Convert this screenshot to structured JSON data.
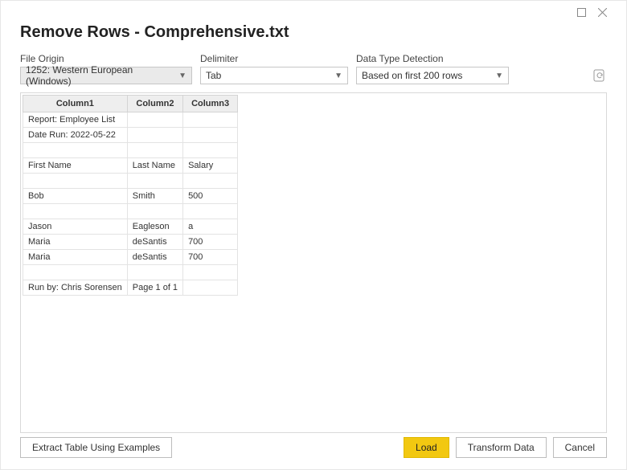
{
  "title": "Remove Rows - Comprehensive.txt",
  "fields": {
    "file_origin": {
      "label": "File Origin",
      "value": "1252: Western European (Windows)"
    },
    "delimiter": {
      "label": "Delimiter",
      "value": "Tab"
    },
    "detection": {
      "label": "Data Type Detection",
      "value": "Based on first 200 rows"
    }
  },
  "table": {
    "columns": [
      "Column1",
      "Column2",
      "Column3"
    ],
    "rows": [
      [
        "Report: Employee List",
        "",
        ""
      ],
      [
        "Date Run: 2022-05-22",
        "",
        ""
      ],
      [
        "",
        "",
        ""
      ],
      [
        "First Name",
        "Last Name",
        "Salary"
      ],
      [
        "",
        "",
        ""
      ],
      [
        "Bob",
        "Smith",
        "500"
      ],
      [
        "",
        "",
        ""
      ],
      [
        "Jason",
        "Eagleson",
        "a"
      ],
      [
        "Maria",
        "deSantis",
        "700"
      ],
      [
        "Maria",
        "deSantis",
        "700"
      ],
      [
        "",
        "",
        ""
      ],
      [
        "Run by: Chris Sorensen",
        "Page 1 of 1",
        ""
      ]
    ]
  },
  "buttons": {
    "extract": "Extract Table Using Examples",
    "load": "Load",
    "transform": "Transform Data",
    "cancel": "Cancel"
  },
  "style": {
    "accent": "#f2c811",
    "border": "#d9d9d9",
    "header_bg": "#eeeeee"
  }
}
